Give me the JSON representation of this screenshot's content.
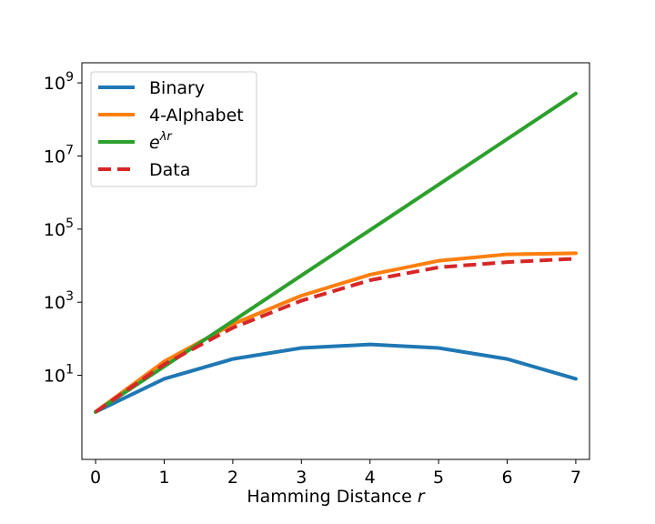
{
  "chart_data": {
    "type": "line",
    "xlabel": "Hamming Distance",
    "xlabel_var": "r",
    "yscale": "log",
    "xlim": [
      -0.2,
      7.2
    ],
    "ylim_log10": [
      -1.3,
      9.55
    ],
    "x_ticks": [
      "0",
      "1",
      "2",
      "3",
      "4",
      "5",
      "6",
      "7"
    ],
    "y_ticks": [
      {
        "base": "10",
        "exp": "1"
      },
      {
        "base": "10",
        "exp": "3"
      },
      {
        "base": "10",
        "exp": "5"
      },
      {
        "base": "10",
        "exp": "7"
      },
      {
        "base": "10",
        "exp": "9"
      }
    ],
    "grid": false,
    "legend_position": "upper-left",
    "x": [
      0,
      1,
      2,
      3,
      4,
      5,
      6,
      7
    ],
    "series": [
      {
        "name": "Binary",
        "color": "#1f77b4",
        "dash": "solid",
        "values": [
          1,
          8,
          28,
          56,
          70,
          56,
          28,
          8
        ]
      },
      {
        "name": "4-Alphabet",
        "color": "#ff7f0e",
        "dash": "solid",
        "values": [
          1,
          24,
          252,
          1512,
          5670,
          13608,
          20412,
          21870
        ]
      },
      {
        "name": "e^{λr}",
        "legend_base": "e",
        "legend_sup": "λr",
        "color": "#2ca02c",
        "dash": "solid",
        "values": [
          1,
          17.5,
          305,
          5400,
          94000,
          1650000,
          29000000,
          510000000
        ]
      },
      {
        "name": "Data",
        "color": "#d62728",
        "dash": "dashed",
        "values": [
          1,
          20,
          200,
          1100,
          4000,
          9000,
          12500,
          15500
        ]
      }
    ]
  }
}
